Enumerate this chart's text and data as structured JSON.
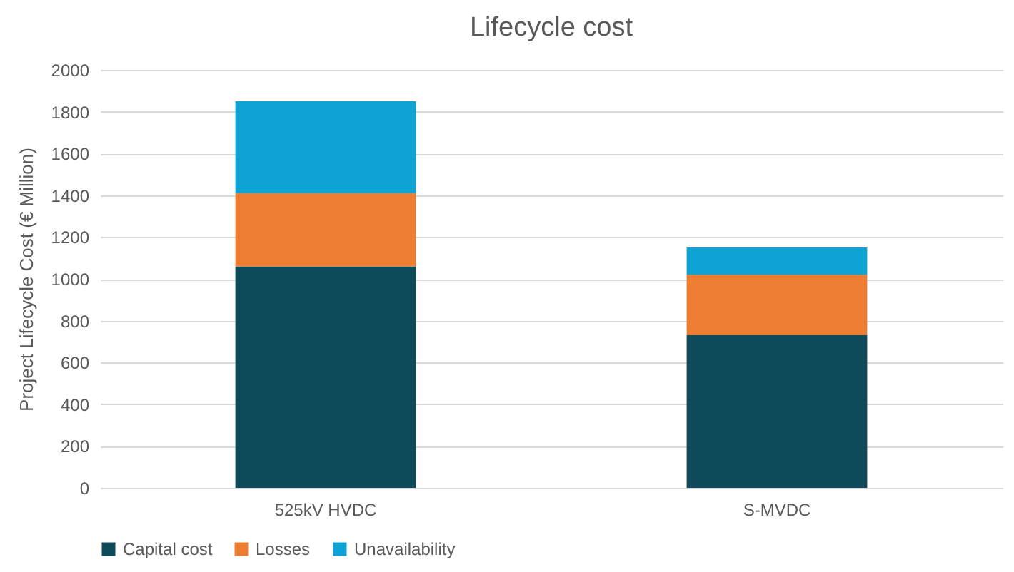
{
  "chart_data": {
    "type": "bar",
    "title": "Lifecycle cost",
    "ylabel": "Project Lifecycle Cost (€ Million)",
    "categories": [
      "525kV HVDC",
      "S-MVDC"
    ],
    "series": [
      {
        "name": "Capital cost",
        "color": "#0e4a5a",
        "values": [
          1060,
          730
        ]
      },
      {
        "name": "Losses",
        "color": "#ed7d31",
        "values": [
          350,
          290
        ]
      },
      {
        "name": "Unavailability",
        "color": "#0fa3d4",
        "values": [
          440,
          130
        ]
      }
    ],
    "stacked": true,
    "ylim": [
      0,
      2000
    ],
    "yticks": [
      0,
      200,
      400,
      600,
      800,
      1000,
      1200,
      1400,
      1600,
      1800,
      2000
    ],
    "grid": "y",
    "legend": "bottom"
  }
}
